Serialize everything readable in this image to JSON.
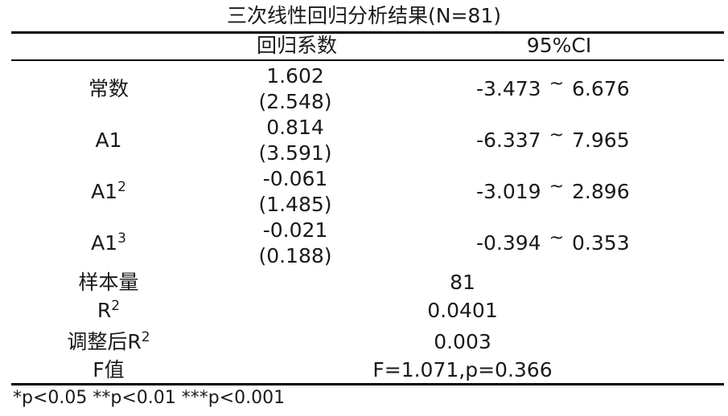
{
  "title": "三次线性回归分析结果(N=81)",
  "header": {
    "coef": "回归系数",
    "ci": "95%CI"
  },
  "rows": [
    {
      "label": "常数",
      "sup": "",
      "coef": "1.602",
      "se": "(2.548)",
      "ci_low": "-3.473",
      "ci_sep": "~",
      "ci_high": "6.676"
    },
    {
      "label": "A1",
      "sup": "",
      "coef": "0.814",
      "se": "(3.591)",
      "ci_low": "-6.337",
      "ci_sep": "~",
      "ci_high": "7.965"
    },
    {
      "label": "A1",
      "sup": "2",
      "coef": "-0.061",
      "se": "(1.485)",
      "ci_low": "-3.019",
      "ci_sep": "~",
      "ci_high": "2.896"
    },
    {
      "label": "A1",
      "sup": "3",
      "coef": "-0.021",
      "se": "(0.188)",
      "ci_low": "-0.394",
      "ci_sep": "~",
      "ci_high": "0.353"
    }
  ],
  "stats": [
    {
      "label": "样本量",
      "sup": "",
      "value": "81"
    },
    {
      "label": "R",
      "sup": "2",
      "value": "0.0401"
    },
    {
      "label": "调整后R",
      "sup": "2",
      "value": "0.003"
    },
    {
      "label": "F值",
      "sup": "",
      "value": "F=1.071,p=0.366"
    }
  ],
  "footnote": "*p<0.05 **p<0.01 ***p<0.001"
}
